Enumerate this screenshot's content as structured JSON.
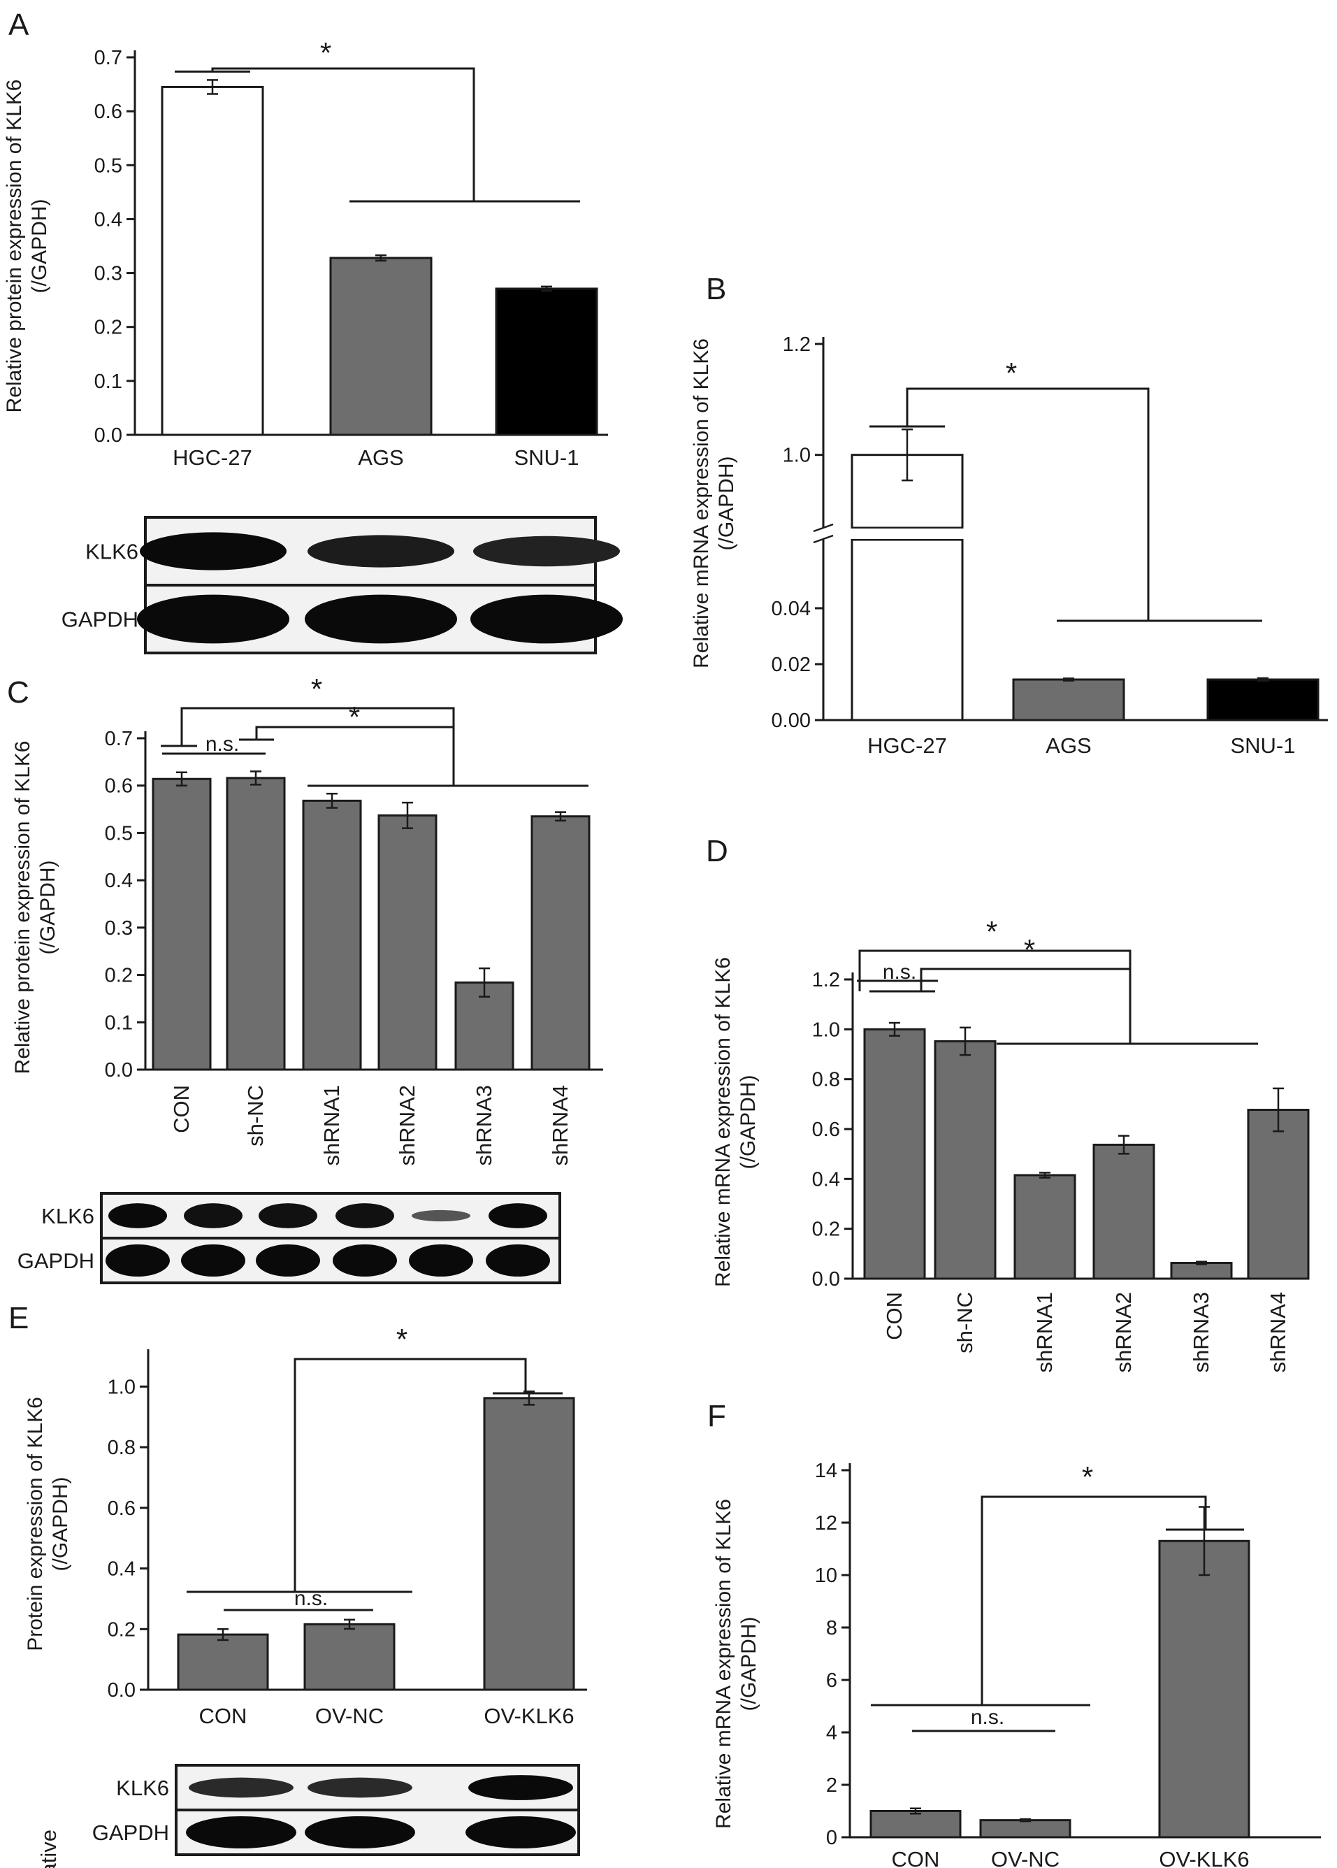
{
  "chart_data": [
    {
      "panel": "A",
      "type": "bar",
      "ylabel": [
        "Relative protein expression of KLK6",
        "(/GAPDH)"
      ],
      "categories": [
        "HGC-27",
        "AGS",
        "SNU-1"
      ],
      "values": [
        0.645,
        0.328,
        0.271
      ],
      "errors": [
        0.013,
        0.005,
        0.004
      ],
      "bar_colors": [
        "#ffffff",
        "#6e6e6e",
        "#000000"
      ],
      "yticks": [
        "0.0",
        "0.1",
        "0.2",
        "0.3",
        "0.4",
        "0.5",
        "0.6",
        "0.7"
      ],
      "ylim": [
        0,
        0.7
      ],
      "significance": [
        {
          "label": "*"
        }
      ],
      "blot": {
        "rows": [
          "KLK6",
          "GAPDH"
        ]
      }
    },
    {
      "panel": "B",
      "type": "bar",
      "ylabel": [
        "Relative mRNA expression of KLK6",
        "(/GAPDH)"
      ],
      "categories": [
        "HGC-27",
        "AGS",
        "SNU-1"
      ],
      "values": [
        1.0,
        0.0145,
        0.0145
      ],
      "errors": [
        0.046,
        0.0004,
        0.0005
      ],
      "bar_colors": [
        "#ffffff",
        "#6e6e6e",
        "#000000"
      ],
      "yticks": [
        "0.00",
        "0.02",
        "0.04",
        "1.0",
        "1.2"
      ],
      "axis_break": {
        "lower": [
          0,
          0.05
        ],
        "upper": [
          0.9,
          1.2
        ]
      },
      "significance": [
        {
          "label": "*"
        }
      ]
    },
    {
      "panel": "C",
      "type": "bar",
      "ylabel": [
        "Relative protein expression of KLK6",
        "(/GAPDH)"
      ],
      "categories": [
        "CON",
        "sh-NC",
        "shRNA1",
        "shRNA2",
        "shRNA3",
        "shRNA4"
      ],
      "values": [
        0.614,
        0.616,
        0.568,
        0.537,
        0.184,
        0.535
      ],
      "errors": [
        0.014,
        0.014,
        0.015,
        0.027,
        0.03,
        0.009
      ],
      "bar_colors": [
        "#6e6e6e"
      ],
      "yticks": [
        "0.0",
        "0.1",
        "0.2",
        "0.3",
        "0.4",
        "0.5",
        "0.6",
        "0.7"
      ],
      "ylim": [
        0,
        0.7
      ],
      "significance": [
        {
          "label": "*"
        },
        {
          "label": "*"
        },
        {
          "label": "n.s."
        }
      ],
      "blot": {
        "rows": [
          "KLK6",
          "GAPDH"
        ]
      }
    },
    {
      "panel": "D",
      "type": "bar",
      "ylabel": [
        "Relative mRNA expression of KLK6",
        "(/GAPDH)"
      ],
      "categories": [
        "CON",
        "sh-NC",
        "shRNA1",
        "shRNA2",
        "shRNA3",
        "shRNA4"
      ],
      "values": [
        1.0,
        0.952,
        0.415,
        0.537,
        0.063,
        0.677
      ],
      "errors": [
        0.026,
        0.055,
        0.01,
        0.036,
        0.005,
        0.086
      ],
      "bar_colors": [
        "#6e6e6e"
      ],
      "yticks": [
        "0.0",
        "0.2",
        "0.4",
        "0.6",
        "0.8",
        "1.0",
        "1.2"
      ],
      "ylim": [
        0,
        1.2
      ],
      "significance": [
        {
          "label": "*"
        },
        {
          "label": "*"
        },
        {
          "label": "n.s."
        }
      ]
    },
    {
      "panel": "E",
      "type": "bar",
      "ylabel": [
        "Protein expression of KLK6",
        "(/GAPDH)"
      ],
      "categories": [
        "CON",
        "OV-NC",
        "OV-KLK6"
      ],
      "values": [
        0.182,
        0.216,
        0.962
      ],
      "errors": [
        0.018,
        0.015,
        0.022
      ],
      "bar_colors": [
        "#6e6e6e"
      ],
      "yticks": [
        "0.0",
        "0.2",
        "0.4",
        "0.6",
        "0.8",
        "1.0"
      ],
      "ylim": [
        0,
        1.1
      ],
      "significance": [
        {
          "label": "*"
        },
        {
          "label": "n.s."
        }
      ],
      "blot": {
        "rows": [
          "KLK6",
          "GAPDH"
        ],
        "side_label": "Relative"
      }
    },
    {
      "panel": "F",
      "type": "bar",
      "ylabel": [
        "Relative mRNA expression of KLK6",
        "(/GAPDH)"
      ],
      "categories": [
        "CON",
        "OV-NC",
        "OV-KLK6"
      ],
      "values": [
        1.0,
        0.65,
        11.3
      ],
      "errors": [
        0.1,
        0.04,
        1.3
      ],
      "bar_colors": [
        "#6e6e6e"
      ],
      "yticks": [
        "0",
        "2",
        "4",
        "6",
        "8",
        "10",
        "12",
        "14"
      ],
      "ylim": [
        0,
        14
      ],
      "significance": [
        {
          "label": "*"
        },
        {
          "label": "n.s."
        }
      ]
    }
  ]
}
